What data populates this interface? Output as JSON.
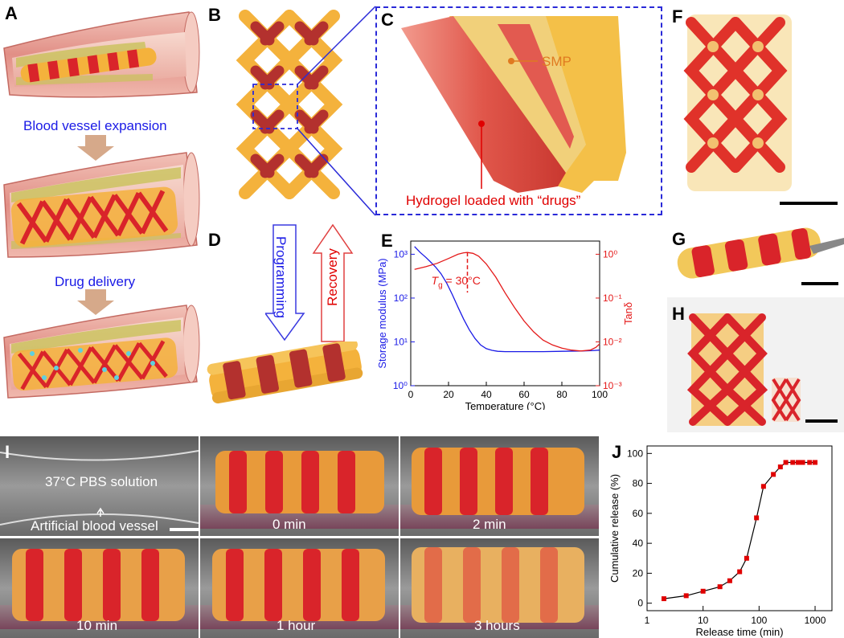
{
  "panels": {
    "A": "A",
    "B": "B",
    "C": "C",
    "D": "D",
    "E": "E",
    "F": "F",
    "G": "G",
    "H": "H",
    "I": "I",
    "J": "J"
  },
  "panelA": {
    "step1": "Blood vessel expansion",
    "step2": "Drug delivery"
  },
  "panelC": {
    "smp_label": "SMP",
    "hydrogel_label": "Hydrogel loaded with “drugs”"
  },
  "panelD": {
    "programming": "Programming",
    "recovery": "Recovery"
  },
  "panelI": {
    "solution": "37°C PBS solution",
    "vessel": "Artificial blood vessel",
    "t1": "0 min",
    "t2": "2 min",
    "t3": "10 min",
    "t4": "1 hour",
    "t5": "3 hours"
  },
  "colors": {
    "hydrogel_red": "#d9242a",
    "smp_orange": "#f4b23c",
    "vessel_pink": "#e9a39a",
    "dashed_blue": "#2a2ad8",
    "modulus_blue": "#1a1ae6",
    "tan_red": "#e41a1a",
    "release_red": "#e00000"
  },
  "chart_data": [
    {
      "type": "line",
      "panel": "E",
      "xlabel": "Temperature (°C)",
      "ylabel": "Storage modulus (MPa)",
      "y2label": "Tanδ",
      "xlim": [
        0,
        100
      ],
      "ylim": [
        1,
        2000
      ],
      "y2lim": [
        0.001,
        2
      ],
      "yscale": "log",
      "y2scale": "log",
      "xticks": [
        "0",
        "20",
        "40",
        "60",
        "80",
        "100"
      ],
      "yticks": [
        "10⁰",
        "10¹",
        "10²",
        "10³"
      ],
      "y2ticks": [
        "10⁻³",
        "10⁻²",
        "10⁻¹",
        "10⁰"
      ],
      "annotation": "Tg = 30°C",
      "annotation_sym": "T",
      "annotation_sub": "g",
      "annotation_rest": " = 30°C",
      "series": [
        {
          "axis": "left",
          "color": "#1a1ae6",
          "x": [
            2,
            5,
            8,
            10,
            13,
            16,
            19,
            22,
            25,
            28,
            31,
            34,
            37,
            40,
            43,
            46,
            50,
            55,
            60,
            70,
            80,
            90,
            96,
            100
          ],
          "y": [
            1500,
            1100,
            850,
            700,
            520,
            360,
            220,
            120,
            62,
            33,
            19,
            12,
            8.5,
            7,
            6.4,
            6.1,
            6.0,
            6.0,
            6.0,
            6.0,
            6.1,
            6.2,
            6.3,
            6.5
          ]
        },
        {
          "axis": "right",
          "color": "#e41a1a",
          "x": [
            2,
            8,
            14,
            20,
            25,
            28,
            30,
            33,
            36,
            40,
            45,
            50,
            55,
            60,
            65,
            70,
            75,
            80,
            85,
            90,
            95,
            98,
            100
          ],
          "y": [
            0.45,
            0.52,
            0.62,
            0.8,
            1.0,
            1.08,
            1.1,
            1.05,
            0.9,
            0.6,
            0.3,
            0.13,
            0.06,
            0.03,
            0.017,
            0.011,
            0.0085,
            0.0072,
            0.0065,
            0.0062,
            0.0065,
            0.0075,
            0.009
          ]
        }
      ]
    },
    {
      "type": "line",
      "panel": "J",
      "xlabel": "Release time (min)",
      "ylabel": "Cumulative release (%)",
      "xscale": "log",
      "xlim": [
        1,
        2000
      ],
      "ylim": [
        -5,
        105
      ],
      "xticks": [
        "1",
        "10",
        "100",
        "1000"
      ],
      "yticks": [
        "0",
        "20",
        "40",
        "60",
        "80",
        "100"
      ],
      "series": [
        {
          "color": "#000000",
          "marker_color": "#e00000",
          "x": [
            2,
            5,
            10,
            20,
            30,
            45,
            60,
            90,
            120,
            180,
            240,
            300,
            400,
            500,
            600,
            800,
            1000
          ],
          "y": [
            3,
            5,
            8,
            11,
            15,
            21,
            30,
            57,
            78,
            86,
            91,
            94,
            94,
            94,
            94,
            94,
            94
          ]
        }
      ]
    }
  ]
}
